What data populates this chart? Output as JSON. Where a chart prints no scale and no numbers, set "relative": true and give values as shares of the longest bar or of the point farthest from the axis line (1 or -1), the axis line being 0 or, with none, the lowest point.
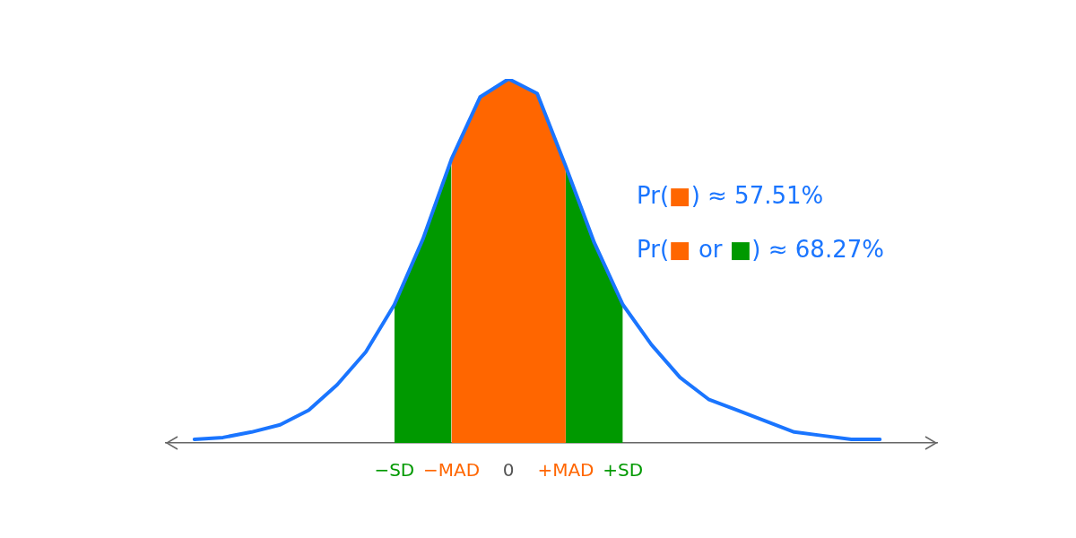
{
  "chart_data": {
    "type": "line",
    "relative": true,
    "marker": "none",
    "annotations": [
      "Pr(■) ≈ 57.51%",
      "Pr(■ or ■) ≈ 68.27%"
    ],
    "categories": [
      null,
      null,
      null,
      null,
      null,
      null,
      null,
      null,
      "−SD",
      null,
      "−MAD",
      null,
      "0",
      null,
      "+MAD",
      null,
      "+SD",
      null,
      null,
      null,
      null,
      null,
      null,
      null,
      null,
      null,
      null,
      null
    ],
    "series": [
      {
        "type": "area",
        "color": "#ff6600",
        "values": [
          null,
          null,
          null,
          null,
          null,
          null,
          null,
          null,
          null,
          null,
          0.78,
          0.95,
          1,
          0.96,
          0.76,
          null,
          null,
          null,
          null,
          null,
          null,
          null,
          null,
          null,
          null,
          null,
          null,
          null
        ]
      },
      {
        "type": "area",
        "color": "#009900",
        "values": [
          null,
          null,
          null,
          null,
          null,
          null,
          null,
          null,
          0.38,
          0.56,
          0.78,
          null,
          null,
          null,
          0.76,
          0.55,
          0.38,
          null,
          null,
          null,
          null,
          null,
          null,
          null,
          null,
          null,
          null,
          null
        ]
      },
      {
        "color": "#1a75ff",
        "values": [
          null,
          0.01,
          0.015,
          0.03,
          0.05,
          0.09,
          0.16,
          0.25,
          0.38,
          0.56,
          0.78,
          0.95,
          1,
          0.96,
          0.76,
          0.55,
          0.38,
          0.27,
          0.18,
          0.12,
          0.09,
          0.06,
          0.03,
          0.02,
          0.01,
          0.01,
          null,
          null
        ]
      }
    ]
  }
}
